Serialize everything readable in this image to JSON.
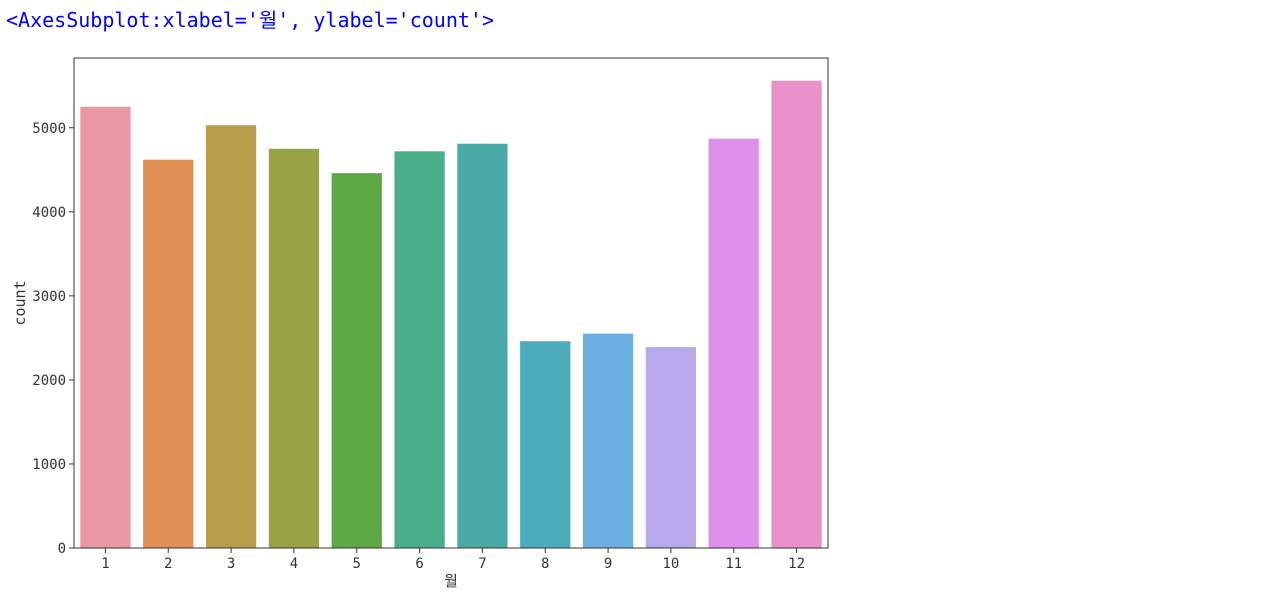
{
  "cell_output": "<AxesSubplot:xlabel='월', ylabel='count'>",
  "chart_data": {
    "type": "bar",
    "title": "",
    "xlabel": "월",
    "ylabel": "count",
    "categories": [
      "1",
      "2",
      "3",
      "4",
      "5",
      "6",
      "7",
      "8",
      "9",
      "10",
      "11",
      "12"
    ],
    "values": [
      5250,
      4620,
      5030,
      4750,
      4460,
      4720,
      4810,
      2460,
      2550,
      2390,
      4870,
      5560
    ],
    "colors": [
      "#ea96a3",
      "#e08f55",
      "#b89c49",
      "#99a244",
      "#5da944",
      "#48ae88",
      "#4aaba5",
      "#4dabbe",
      "#6aaee2",
      "#b8a8ec",
      "#df8feb",
      "#e991c8"
    ],
    "ylim": [
      0,
      5830
    ],
    "yticks": [
      0,
      1000,
      2000,
      3000,
      4000,
      5000
    ],
    "grid": false,
    "legend": "none"
  }
}
